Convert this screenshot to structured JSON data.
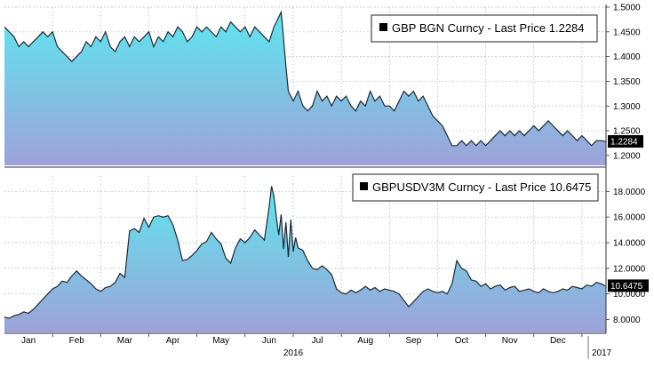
{
  "chart_data": [
    {
      "type": "area",
      "panel": "top",
      "title": "GBP BGN Curncy - Last Price 1.2284",
      "ylim": [
        1.18,
        1.5
      ],
      "yticks": [
        1.2,
        1.25,
        1.3,
        1.35,
        1.4,
        1.45,
        1.5
      ],
      "ytick_labels": [
        "1.2000",
        "1.2500",
        "1.3000",
        "1.3500",
        "1.4000",
        "1.4500",
        "1.5000"
      ],
      "last_value": 1.2284,
      "last_label": "1.2284",
      "grid": true,
      "legend_position": "top-right",
      "fill_top_color": "#5ee6ef",
      "fill_bottom_color": "#9ea2d8",
      "line_color": "#1b2a3a",
      "x": [
        0,
        0.1,
        0.2,
        0.3,
        0.4,
        0.5,
        0.6,
        0.7,
        0.8,
        0.9,
        1.0,
        1.1,
        1.2,
        1.3,
        1.4,
        1.5,
        1.6,
        1.7,
        1.8,
        1.9,
        2.0,
        2.1,
        2.2,
        2.3,
        2.4,
        2.5,
        2.6,
        2.7,
        2.8,
        2.9,
        3.0,
        3.1,
        3.2,
        3.3,
        3.4,
        3.5,
        3.6,
        3.7,
        3.8,
        3.9,
        4.0,
        4.1,
        4.2,
        4.3,
        4.4,
        4.5,
        4.6,
        4.7,
        4.8,
        4.9,
        5.0,
        5.1,
        5.2,
        5.3,
        5.4,
        5.5,
        5.6,
        5.7,
        5.75,
        5.78,
        5.85,
        5.9,
        6.0,
        6.1,
        6.2,
        6.3,
        6.4,
        6.5,
        6.6,
        6.7,
        6.8,
        6.9,
        7.0,
        7.1,
        7.2,
        7.3,
        7.4,
        7.5,
        7.6,
        7.7,
        7.8,
        7.9,
        8.0,
        8.1,
        8.2,
        8.3,
        8.4,
        8.5,
        8.6,
        8.7,
        8.8,
        8.9,
        9.0,
        9.1,
        9.2,
        9.3,
        9.4,
        9.5,
        9.6,
        9.7,
        9.8,
        9.9,
        10.0,
        10.1,
        10.2,
        10.3,
        10.4,
        10.5,
        10.6,
        10.7,
        10.8,
        10.9,
        11.0,
        11.1,
        11.2,
        11.3,
        11.4,
        11.5,
        11.6,
        11.7,
        11.8,
        11.9,
        12.0,
        12.1,
        12.2,
        12.3,
        12.4,
        12.5
      ],
      "values": [
        1.46,
        1.45,
        1.44,
        1.42,
        1.43,
        1.42,
        1.43,
        1.44,
        1.45,
        1.44,
        1.45,
        1.42,
        1.41,
        1.4,
        1.39,
        1.4,
        1.41,
        1.43,
        1.42,
        1.44,
        1.43,
        1.45,
        1.42,
        1.41,
        1.43,
        1.44,
        1.42,
        1.44,
        1.43,
        1.44,
        1.45,
        1.42,
        1.44,
        1.43,
        1.45,
        1.44,
        1.46,
        1.45,
        1.43,
        1.44,
        1.46,
        1.45,
        1.46,
        1.45,
        1.44,
        1.46,
        1.45,
        1.47,
        1.46,
        1.45,
        1.46,
        1.44,
        1.46,
        1.45,
        1.44,
        1.43,
        1.46,
        1.48,
        1.49,
        1.46,
        1.38,
        1.33,
        1.31,
        1.33,
        1.3,
        1.29,
        1.3,
        1.33,
        1.31,
        1.32,
        1.3,
        1.32,
        1.31,
        1.32,
        1.3,
        1.29,
        1.31,
        1.3,
        1.33,
        1.31,
        1.32,
        1.3,
        1.3,
        1.29,
        1.31,
        1.33,
        1.32,
        1.33,
        1.31,
        1.32,
        1.3,
        1.28,
        1.27,
        1.26,
        1.24,
        1.22,
        1.22,
        1.23,
        1.22,
        1.23,
        1.22,
        1.23,
        1.22,
        1.23,
        1.24,
        1.25,
        1.24,
        1.25,
        1.24,
        1.25,
        1.24,
        1.25,
        1.26,
        1.25,
        1.26,
        1.27,
        1.26,
        1.25,
        1.24,
        1.25,
        1.24,
        1.23,
        1.24,
        1.23,
        1.22,
        1.23,
        1.23,
        1.228
      ]
    },
    {
      "type": "area",
      "panel": "bottom",
      "title": "GBPUSDV3M Curncy - Last Price 10.6475",
      "ylim": [
        7,
        19.2
      ],
      "yticks": [
        8,
        10,
        12,
        14,
        16,
        18
      ],
      "ytick_labels": [
        "8.0000",
        "10.0000",
        "12.0000",
        "14.0000",
        "16.0000",
        "18.0000"
      ],
      "last_value": 10.6475,
      "last_label": "10.6475",
      "grid": true,
      "legend_position": "top-right",
      "fill_top_color": "#5ee6ef",
      "fill_bottom_color": "#9ea2d8",
      "line_color": "#1b2a3a",
      "x": [
        0,
        0.1,
        0.2,
        0.3,
        0.4,
        0.5,
        0.6,
        0.7,
        0.8,
        0.9,
        1.0,
        1.1,
        1.2,
        1.3,
        1.4,
        1.5,
        1.6,
        1.7,
        1.8,
        1.9,
        2.0,
        2.1,
        2.2,
        2.3,
        2.4,
        2.5,
        2.6,
        2.7,
        2.8,
        2.9,
        3.0,
        3.1,
        3.2,
        3.3,
        3.4,
        3.5,
        3.6,
        3.7,
        3.8,
        3.9,
        4.0,
        4.1,
        4.2,
        4.3,
        4.4,
        4.5,
        4.6,
        4.7,
        4.8,
        4.9,
        5.0,
        5.1,
        5.2,
        5.3,
        5.4,
        5.5,
        5.55,
        5.6,
        5.65,
        5.7,
        5.75,
        5.8,
        5.85,
        5.9,
        5.95,
        6.0,
        6.05,
        6.1,
        6.2,
        6.3,
        6.4,
        6.5,
        6.6,
        6.7,
        6.8,
        6.9,
        7.0,
        7.1,
        7.2,
        7.3,
        7.4,
        7.5,
        7.6,
        7.7,
        7.8,
        7.9,
        8.0,
        8.1,
        8.2,
        8.3,
        8.4,
        8.5,
        8.6,
        8.7,
        8.8,
        8.9,
        9.0,
        9.1,
        9.2,
        9.3,
        9.4,
        9.5,
        9.6,
        9.7,
        9.8,
        9.9,
        10.0,
        10.1,
        10.2,
        10.3,
        10.4,
        10.5,
        10.6,
        10.7,
        10.8,
        10.9,
        11.0,
        11.1,
        11.2,
        11.3,
        11.4,
        11.5,
        11.6,
        11.7,
        11.8,
        11.9,
        12.0,
        12.1,
        12.2,
        12.3,
        12.4,
        12.5
      ],
      "values": [
        8.2,
        8.1,
        8.3,
        8.4,
        8.6,
        8.5,
        8.8,
        9.2,
        9.6,
        10.0,
        10.4,
        10.6,
        11.0,
        10.9,
        11.4,
        11.8,
        11.4,
        11.1,
        10.8,
        10.4,
        10.2,
        10.5,
        10.6,
        10.9,
        11.6,
        11.3,
        14.9,
        15.1,
        14.8,
        15.9,
        15.2,
        16.0,
        16.1,
        16.0,
        16.1,
        15.4,
        14.2,
        12.6,
        12.7,
        13.0,
        13.4,
        13.9,
        14.1,
        14.8,
        14.3,
        13.9,
        12.8,
        12.4,
        13.6,
        14.3,
        14.0,
        14.4,
        15.0,
        14.6,
        14.2,
        16.8,
        18.4,
        17.6,
        16.0,
        14.6,
        16.2,
        13.5,
        15.6,
        12.9,
        15.8,
        13.3,
        14.4,
        13.6,
        13.4,
        12.6,
        12.0,
        11.9,
        12.2,
        11.9,
        11.5,
        10.4,
        10.1,
        10.0,
        10.3,
        10.1,
        10.3,
        10.6,
        10.3,
        10.5,
        10.2,
        10.4,
        10.3,
        10.2,
        10.0,
        9.5,
        9.0,
        9.4,
        9.8,
        10.2,
        10.4,
        10.2,
        10.1,
        10.2,
        10.0,
        10.8,
        12.6,
        12.0,
        11.8,
        11.1,
        11.0,
        10.6,
        10.8,
        10.4,
        10.6,
        10.7,
        10.3,
        10.5,
        10.6,
        10.2,
        10.3,
        10.4,
        10.2,
        10.1,
        10.4,
        10.2,
        10.1,
        10.2,
        10.4,
        10.3,
        10.6,
        10.5,
        10.4,
        10.7,
        10.6,
        10.9,
        10.8,
        10.6
      ]
    }
  ],
  "x_axis": {
    "month_labels": [
      "Jan",
      "Feb",
      "Mar",
      "Apr",
      "May",
      "Jun",
      "Jul",
      "Aug",
      "Sep",
      "Oct",
      "Nov",
      "Dec"
    ],
    "year_labels": [
      "2016",
      "2017"
    ]
  }
}
